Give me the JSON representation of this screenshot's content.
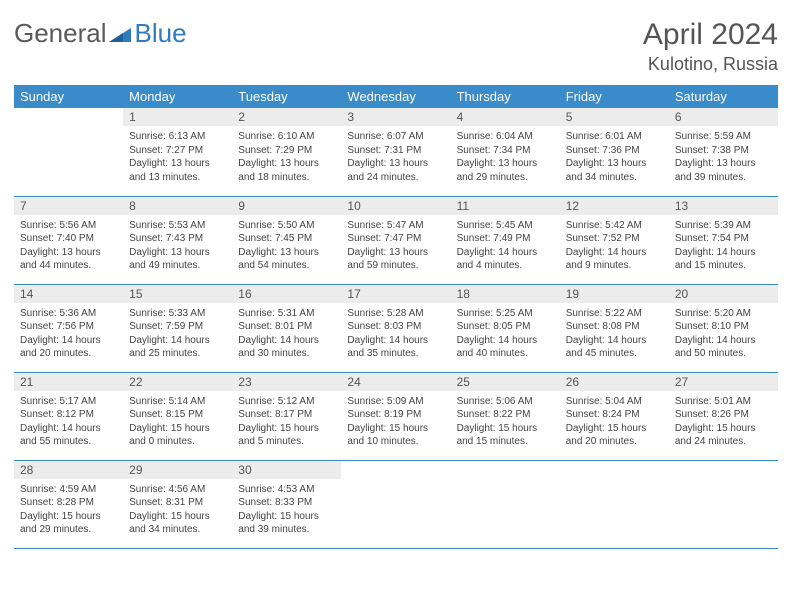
{
  "brand": {
    "part1": "General",
    "part2": "Blue"
  },
  "title": "April 2024",
  "location": "Kulotino, Russia",
  "colors": {
    "header_bg": "#3a8bc9",
    "header_fg": "#ffffff",
    "daynum_bg": "#ececec",
    "row_border": "#3a8bc9",
    "brand_grey": "#5a5a5a",
    "brand_blue": "#2f7bbf"
  },
  "weekdays": [
    "Sunday",
    "Monday",
    "Tuesday",
    "Wednesday",
    "Thursday",
    "Friday",
    "Saturday"
  ],
  "weeks": [
    [
      {
        "n": "",
        "sr": "",
        "ss": "",
        "dl": ""
      },
      {
        "n": "1",
        "sr": "Sunrise: 6:13 AM",
        "ss": "Sunset: 7:27 PM",
        "dl": "Daylight: 13 hours and 13 minutes."
      },
      {
        "n": "2",
        "sr": "Sunrise: 6:10 AM",
        "ss": "Sunset: 7:29 PM",
        "dl": "Daylight: 13 hours and 18 minutes."
      },
      {
        "n": "3",
        "sr": "Sunrise: 6:07 AM",
        "ss": "Sunset: 7:31 PM",
        "dl": "Daylight: 13 hours and 24 minutes."
      },
      {
        "n": "4",
        "sr": "Sunrise: 6:04 AM",
        "ss": "Sunset: 7:34 PM",
        "dl": "Daylight: 13 hours and 29 minutes."
      },
      {
        "n": "5",
        "sr": "Sunrise: 6:01 AM",
        "ss": "Sunset: 7:36 PM",
        "dl": "Daylight: 13 hours and 34 minutes."
      },
      {
        "n": "6",
        "sr": "Sunrise: 5:59 AM",
        "ss": "Sunset: 7:38 PM",
        "dl": "Daylight: 13 hours and 39 minutes."
      }
    ],
    [
      {
        "n": "7",
        "sr": "Sunrise: 5:56 AM",
        "ss": "Sunset: 7:40 PM",
        "dl": "Daylight: 13 hours and 44 minutes."
      },
      {
        "n": "8",
        "sr": "Sunrise: 5:53 AM",
        "ss": "Sunset: 7:43 PM",
        "dl": "Daylight: 13 hours and 49 minutes."
      },
      {
        "n": "9",
        "sr": "Sunrise: 5:50 AM",
        "ss": "Sunset: 7:45 PM",
        "dl": "Daylight: 13 hours and 54 minutes."
      },
      {
        "n": "10",
        "sr": "Sunrise: 5:47 AM",
        "ss": "Sunset: 7:47 PM",
        "dl": "Daylight: 13 hours and 59 minutes."
      },
      {
        "n": "11",
        "sr": "Sunrise: 5:45 AM",
        "ss": "Sunset: 7:49 PM",
        "dl": "Daylight: 14 hours and 4 minutes."
      },
      {
        "n": "12",
        "sr": "Sunrise: 5:42 AM",
        "ss": "Sunset: 7:52 PM",
        "dl": "Daylight: 14 hours and 9 minutes."
      },
      {
        "n": "13",
        "sr": "Sunrise: 5:39 AM",
        "ss": "Sunset: 7:54 PM",
        "dl": "Daylight: 14 hours and 15 minutes."
      }
    ],
    [
      {
        "n": "14",
        "sr": "Sunrise: 5:36 AM",
        "ss": "Sunset: 7:56 PM",
        "dl": "Daylight: 14 hours and 20 minutes."
      },
      {
        "n": "15",
        "sr": "Sunrise: 5:33 AM",
        "ss": "Sunset: 7:59 PM",
        "dl": "Daylight: 14 hours and 25 minutes."
      },
      {
        "n": "16",
        "sr": "Sunrise: 5:31 AM",
        "ss": "Sunset: 8:01 PM",
        "dl": "Daylight: 14 hours and 30 minutes."
      },
      {
        "n": "17",
        "sr": "Sunrise: 5:28 AM",
        "ss": "Sunset: 8:03 PM",
        "dl": "Daylight: 14 hours and 35 minutes."
      },
      {
        "n": "18",
        "sr": "Sunrise: 5:25 AM",
        "ss": "Sunset: 8:05 PM",
        "dl": "Daylight: 14 hours and 40 minutes."
      },
      {
        "n": "19",
        "sr": "Sunrise: 5:22 AM",
        "ss": "Sunset: 8:08 PM",
        "dl": "Daylight: 14 hours and 45 minutes."
      },
      {
        "n": "20",
        "sr": "Sunrise: 5:20 AM",
        "ss": "Sunset: 8:10 PM",
        "dl": "Daylight: 14 hours and 50 minutes."
      }
    ],
    [
      {
        "n": "21",
        "sr": "Sunrise: 5:17 AM",
        "ss": "Sunset: 8:12 PM",
        "dl": "Daylight: 14 hours and 55 minutes."
      },
      {
        "n": "22",
        "sr": "Sunrise: 5:14 AM",
        "ss": "Sunset: 8:15 PM",
        "dl": "Daylight: 15 hours and 0 minutes."
      },
      {
        "n": "23",
        "sr": "Sunrise: 5:12 AM",
        "ss": "Sunset: 8:17 PM",
        "dl": "Daylight: 15 hours and 5 minutes."
      },
      {
        "n": "24",
        "sr": "Sunrise: 5:09 AM",
        "ss": "Sunset: 8:19 PM",
        "dl": "Daylight: 15 hours and 10 minutes."
      },
      {
        "n": "25",
        "sr": "Sunrise: 5:06 AM",
        "ss": "Sunset: 8:22 PM",
        "dl": "Daylight: 15 hours and 15 minutes."
      },
      {
        "n": "26",
        "sr": "Sunrise: 5:04 AM",
        "ss": "Sunset: 8:24 PM",
        "dl": "Daylight: 15 hours and 20 minutes."
      },
      {
        "n": "27",
        "sr": "Sunrise: 5:01 AM",
        "ss": "Sunset: 8:26 PM",
        "dl": "Daylight: 15 hours and 24 minutes."
      }
    ],
    [
      {
        "n": "28",
        "sr": "Sunrise: 4:59 AM",
        "ss": "Sunset: 8:28 PM",
        "dl": "Daylight: 15 hours and 29 minutes."
      },
      {
        "n": "29",
        "sr": "Sunrise: 4:56 AM",
        "ss": "Sunset: 8:31 PM",
        "dl": "Daylight: 15 hours and 34 minutes."
      },
      {
        "n": "30",
        "sr": "Sunrise: 4:53 AM",
        "ss": "Sunset: 8:33 PM",
        "dl": "Daylight: 15 hours and 39 minutes."
      },
      {
        "n": "",
        "sr": "",
        "ss": "",
        "dl": ""
      },
      {
        "n": "",
        "sr": "",
        "ss": "",
        "dl": ""
      },
      {
        "n": "",
        "sr": "",
        "ss": "",
        "dl": ""
      },
      {
        "n": "",
        "sr": "",
        "ss": "",
        "dl": ""
      }
    ]
  ]
}
